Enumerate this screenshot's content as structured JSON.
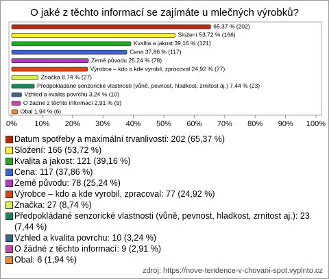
{
  "chart_data": {
    "type": "bar",
    "orientation": "horizontal",
    "title": "O jaké z těchto informací se zajímáte u mlečných výrobků?",
    "categories": [
      "Datum spotřeby a maximální trvanlivosti: 202 (65,37 %)",
      "Složení: 166 (53,72 %)",
      "Kvalita a jakost: 121 (39,16 %)",
      "Cena: 117 (37,86 %)",
      "Země původu: 78 (25,24 %)",
      "Výrobce – kdo a kde vyrobil, zpracoval: 77 (24,92 %)",
      "Značka: 27 (8,74 %)",
      "Předpokládané senzorické vlastnosti (vůně, pevnost, hladkost, zrnitost aj.): 23 (7,44 %)",
      "Vzhled a kvalita povrchu: 10 (3,24 %)",
      "O žádné z těchto informací: 9 (2,91 %)",
      "Obal: 6 (1,94 %)"
    ],
    "values": [
      65.37,
      53.72,
      39.16,
      37.86,
      25.24,
      24.92,
      8.74,
      7.44,
      3.24,
      2.91,
      1.94
    ],
    "value_labels": [
      "65,37 % (202)",
      "Složení 53,72 % (166)",
      "Kvalita a jakost 39,16 % (121)",
      "Cena 37,86 % (117)",
      "Země původu 25,24 % (78)",
      "Výrobce – kdo a kde vyrobil, zpracoval 24,92 % (77)",
      "Značka 8,74 % (27)",
      "Předpokládané senzorické vlastnosti (vůně, pevnost, hladkost, zrnitost aj.) 7,44 % (23)",
      "Vzhled a kvalita povrchu 3,24 % (10)",
      "O žádné z těchto informací 2,91 % (9)",
      "Obal 1,94 % (6)"
    ],
    "colors": [
      "#cc2200",
      "#ffee33",
      "#22aa22",
      "#3366dd",
      "#bb33cc",
      "#dd4411",
      "#ddee55",
      "#118855",
      "#336688",
      "#cc44aa",
      "#ee8833"
    ],
    "xlim": [
      0,
      100
    ],
    "xticks": [
      {
        "value": 0,
        "label": "0%"
      },
      {
        "value": 10,
        "label": "10%"
      },
      {
        "value": 20,
        "label": "20%"
      },
      {
        "value": 30,
        "label": "30%"
      },
      {
        "value": 40,
        "label": "40%"
      },
      {
        "value": 50,
        "label": "50%"
      },
      {
        "value": 60,
        "label": "60%"
      },
      {
        "value": 70,
        "label": "70%"
      },
      {
        "value": 80,
        "label": "80%"
      },
      {
        "value": 90,
        "label": "90%"
      },
      {
        "value": 100,
        "label": "100%"
      }
    ],
    "source": "zdroj: https://nove-tendence-v-chovani-spot.vyplnto.cz"
  }
}
